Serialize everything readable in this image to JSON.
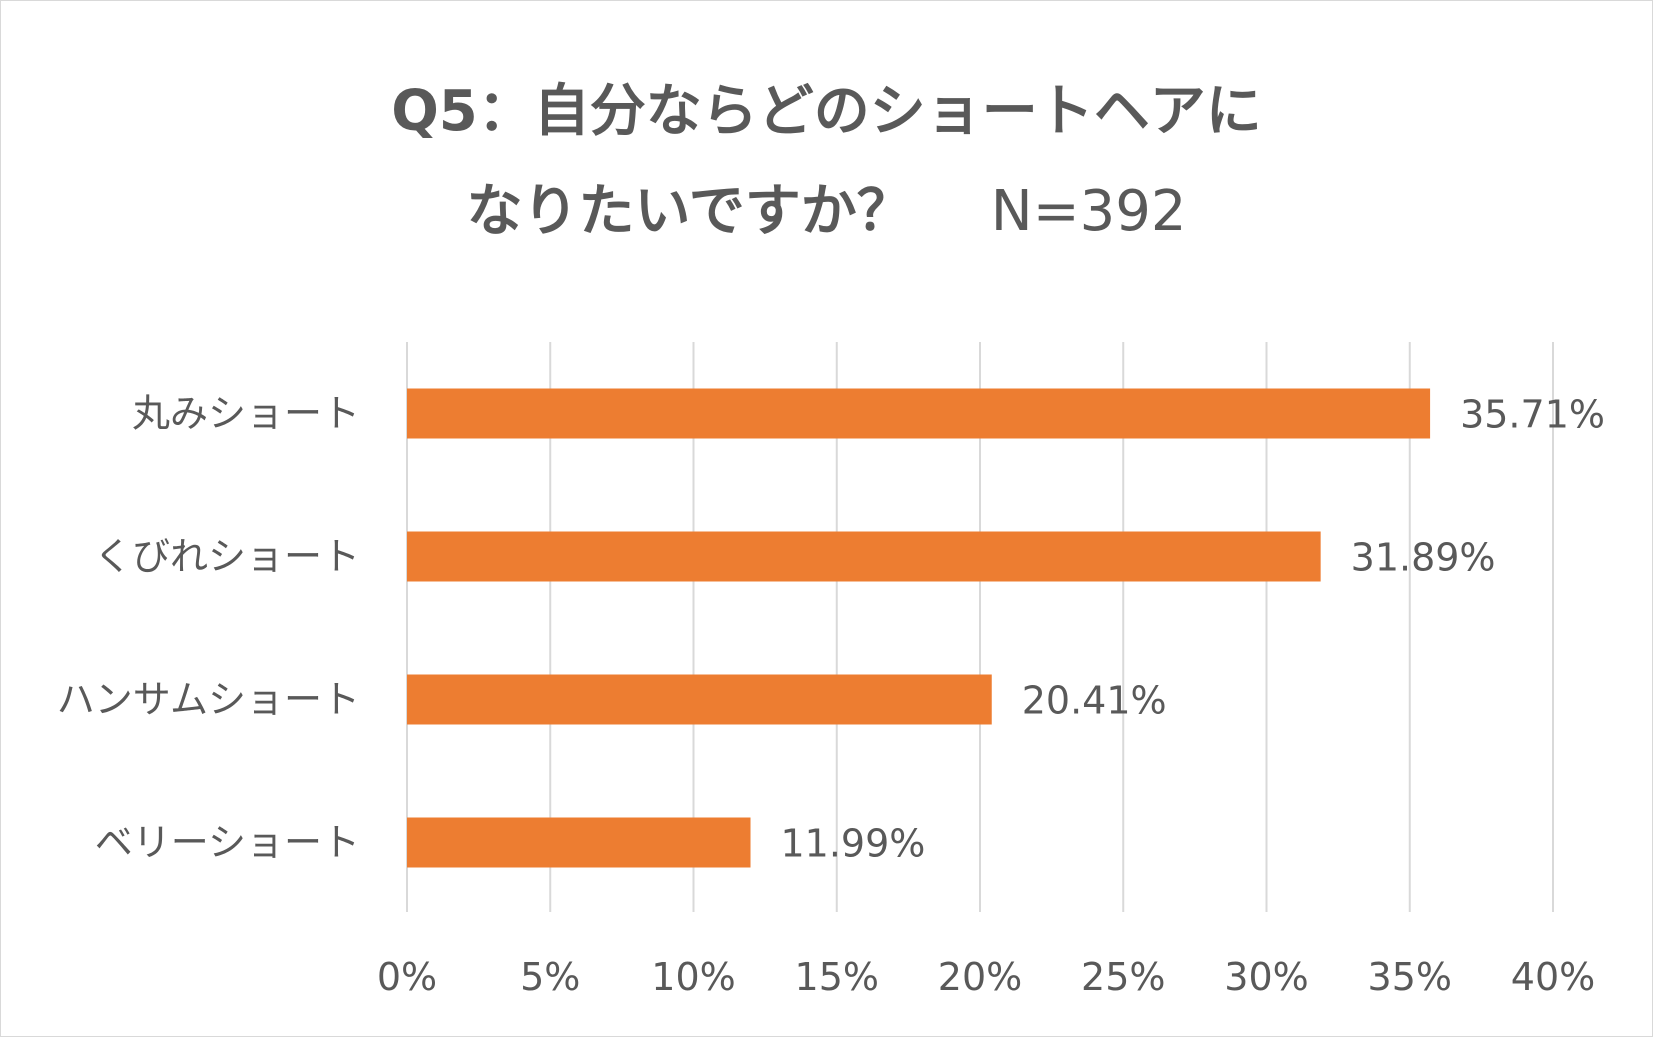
{
  "title": {
    "line1": "Q5：自分ならどのショートヘアに",
    "line2_main": "なりたいですか？",
    "line2_n": "N=392"
  },
  "colors": {
    "bar": "#ED7D31",
    "text": "#595959",
    "grid": "#D9D9D9"
  },
  "chart_data": {
    "type": "bar",
    "orientation": "horizontal",
    "categories": [
      "丸みショート",
      "くびれショート",
      "ハンサムショート",
      "ベリーショート"
    ],
    "values": [
      35.71,
      31.89,
      20.41,
      11.99
    ],
    "data_labels": [
      "35.71%",
      "31.89%",
      "20.41%",
      "11.99%"
    ],
    "xlim": [
      0,
      40
    ],
    "x_ticks": [
      "0%",
      "5%",
      "10%",
      "15%",
      "20%",
      "25%",
      "30%",
      "35%",
      "40%"
    ],
    "grid": "vertical",
    "legend": "none"
  }
}
